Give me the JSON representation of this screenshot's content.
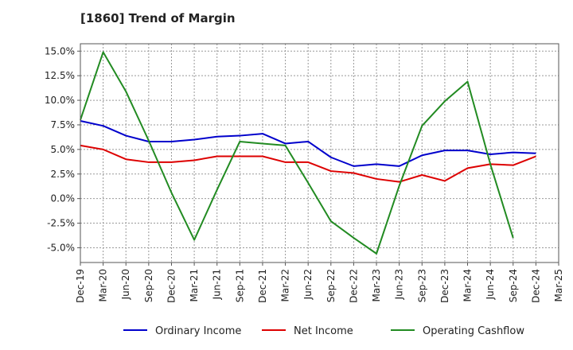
{
  "chart_data": {
    "type": "line",
    "title": "[1860]  Trend of Margin",
    "xlabel": "",
    "ylabel": "",
    "categories": [
      "Dec-19",
      "Mar-20",
      "Jun-20",
      "Sep-20",
      "Dec-20",
      "Mar-21",
      "Jun-21",
      "Sep-21",
      "Dec-21",
      "Mar-22",
      "Jun-22",
      "Sep-22",
      "Dec-22",
      "Mar-23",
      "Jun-23",
      "Sep-23",
      "Dec-23",
      "Mar-24",
      "Jun-24",
      "Sep-24",
      "Dec-24",
      "Mar-25"
    ],
    "ylim": [
      -6.5,
      15.75
    ],
    "yticks": [
      15.0,
      12.5,
      10.0,
      7.5,
      5.0,
      2.5,
      0.0,
      -2.5,
      -5.0
    ],
    "ytick_labels": [
      "15.0%",
      "12.5%",
      "10.0%",
      "7.5%",
      "5.0%",
      "2.5%",
      "0.0%",
      "-2.5%",
      "-5.0%"
    ],
    "grid": true,
    "legend_position": "bottom",
    "series": [
      {
        "name": "Ordinary Income",
        "color": "#0000cc",
        "values": [
          7.9,
          7.4,
          6.4,
          5.8,
          5.8,
          6.0,
          6.3,
          6.4,
          6.6,
          5.6,
          5.8,
          4.2,
          3.3,
          3.5,
          3.3,
          4.4,
          4.9,
          4.9,
          4.5,
          4.7,
          4.6,
          null
        ]
      },
      {
        "name": "Net Income",
        "color": "#dd0000",
        "values": [
          5.4,
          5.0,
          4.0,
          3.7,
          3.7,
          3.9,
          4.3,
          4.3,
          4.3,
          3.7,
          3.7,
          2.8,
          2.6,
          2.0,
          1.7,
          2.4,
          1.8,
          3.1,
          3.5,
          3.4,
          4.3,
          null
        ]
      },
      {
        "name": "Operating Cashflow",
        "color": "#228b22",
        "values": [
          8.0,
          14.9,
          10.9,
          5.9,
          0.6,
          -4.2,
          0.9,
          5.8,
          5.6,
          5.4,
          1.6,
          -2.3,
          -4.0,
          -5.6,
          1.3,
          7.4,
          9.9,
          11.9,
          3.5,
          -4.0,
          null,
          null
        ]
      }
    ]
  }
}
